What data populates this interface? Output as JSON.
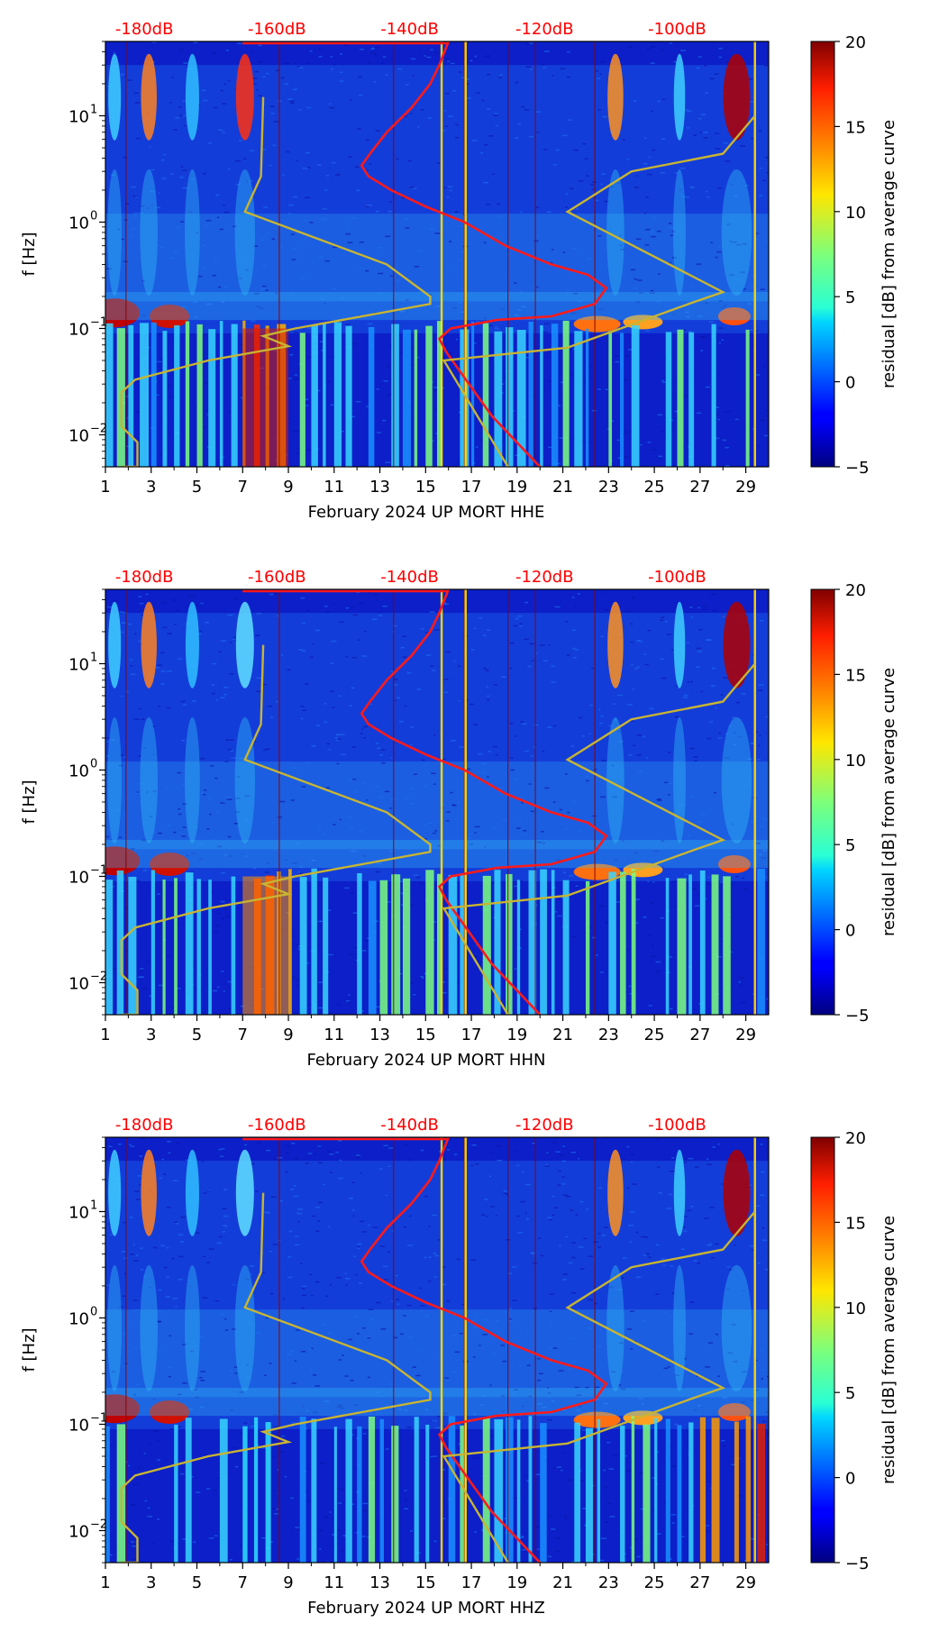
{
  "figure": {
    "background": "#ffffff"
  },
  "chart_data": [
    {
      "type": "heatmap",
      "title": "February 2024 UP MORT  HHE",
      "xlabel": "February 2024 UP MORT  HHE",
      "ylabel": "f [Hz]",
      "x_ticks": [
        "1",
        "3",
        "5",
        "7",
        "9",
        "11",
        "13",
        "15",
        "17",
        "19",
        "21",
        "23",
        "25",
        "27",
        "29"
      ],
      "y_ticks": [
        {
          "base": "10",
          "exp": "1"
        },
        {
          "base": "10",
          "exp": "0"
        },
        {
          "base": "10",
          "exp": "−1"
        },
        {
          "base": "10",
          "exp": "−2"
        }
      ],
      "xlim": [
        1,
        30
      ],
      "ylim_hz": [
        0.005,
        50
      ],
      "colorbar": {
        "label": "residual [dB] from average curve",
        "ticks": [
          "20",
          "15",
          "10",
          "5",
          "0",
          "−5"
        ],
        "range": [
          -5,
          20
        ]
      },
      "top_scale": {
        "ticks": [
          "-180dB",
          "-160dB",
          "-140dB",
          "-120dB",
          "-100dB"
        ],
        "color": "#ff0000"
      },
      "series": [
        {
          "name": "red PSD curve",
          "color": "#ff1a1a"
        },
        {
          "name": "olive PSD curve",
          "color": "#c8b432"
        }
      ]
    },
    {
      "type": "heatmap",
      "title": "February 2024 UP MORT  HHN",
      "xlabel": "February 2024 UP MORT  HHN",
      "ylabel": "f [Hz]",
      "x_ticks": [
        "1",
        "3",
        "5",
        "7",
        "9",
        "11",
        "13",
        "15",
        "17",
        "19",
        "21",
        "23",
        "25",
        "27",
        "29"
      ],
      "y_ticks": [
        {
          "base": "10",
          "exp": "1"
        },
        {
          "base": "10",
          "exp": "0"
        },
        {
          "base": "10",
          "exp": "−1"
        },
        {
          "base": "10",
          "exp": "−2"
        }
      ],
      "xlim": [
        1,
        30
      ],
      "ylim_hz": [
        0.005,
        50
      ],
      "colorbar": {
        "label": "residual [dB] from average curve",
        "ticks": [
          "20",
          "15",
          "10",
          "5",
          "0",
          "−5"
        ],
        "range": [
          -5,
          20
        ]
      },
      "top_scale": {
        "ticks": [
          "-180dB",
          "-160dB",
          "-140dB",
          "-120dB",
          "-100dB"
        ],
        "color": "#ff0000"
      },
      "series": [
        {
          "name": "red PSD curve",
          "color": "#ff1a1a"
        },
        {
          "name": "olive PSD curve",
          "color": "#c8b432"
        }
      ]
    },
    {
      "type": "heatmap",
      "title": "February 2024 UP MORT  HHZ",
      "xlabel": "February 2024 UP MORT  HHZ",
      "ylabel": "f [Hz]",
      "x_ticks": [
        "1",
        "3",
        "5",
        "7",
        "9",
        "11",
        "13",
        "15",
        "17",
        "19",
        "21",
        "23",
        "25",
        "27",
        "29"
      ],
      "y_ticks": [
        {
          "base": "10",
          "exp": "1"
        },
        {
          "base": "10",
          "exp": "0"
        },
        {
          "base": "10",
          "exp": "−1"
        },
        {
          "base": "10",
          "exp": "−2"
        }
      ],
      "xlim": [
        1,
        30
      ],
      "ylim_hz": [
        0.005,
        50
      ],
      "colorbar": {
        "label": "residual [dB] from average curve",
        "ticks": [
          "20",
          "15",
          "10",
          "5",
          "0",
          "−5"
        ],
        "range": [
          -5,
          20
        ]
      },
      "top_scale": {
        "ticks": [
          "-180dB",
          "-160dB",
          "-140dB",
          "-120dB",
          "-100dB"
        ],
        "color": "#ff0000"
      },
      "series": [
        {
          "name": "red PSD curve",
          "color": "#ff1a1a"
        },
        {
          "name": "olive PSD curve",
          "color": "#c8b432"
        }
      ]
    }
  ]
}
